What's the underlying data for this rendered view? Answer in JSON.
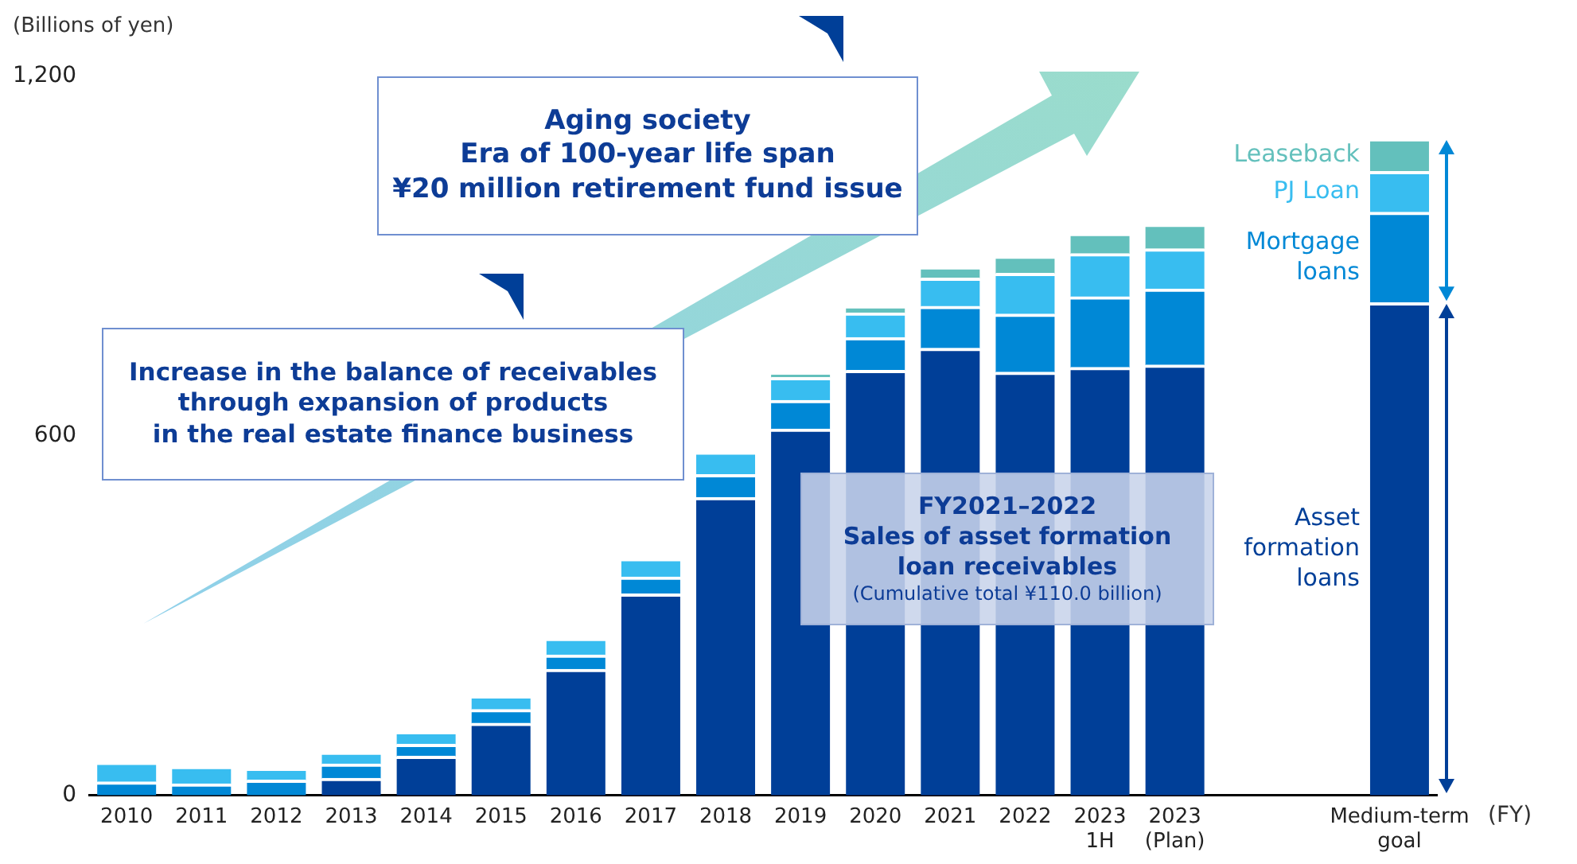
{
  "chart_data": {
    "type": "bar",
    "stacked": true,
    "ylabel": "(Billions of yen)",
    "xlabel": "(FY)",
    "categories": [
      "2010",
      "2011",
      "2012",
      "2013",
      "2014",
      "2015",
      "2016",
      "2017",
      "2018",
      "2019",
      "2020",
      "2021",
      "2022",
      "2023\n1H",
      "2023\n(Plan)",
      null,
      null,
      "Medium-term\ngoal"
    ],
    "series": [
      {
        "name": "Asset formation loans",
        "color": "#003f98",
        "values": [
          null,
          null,
          null,
          28,
          65,
          120,
          210,
          336,
          497,
          611,
          709,
          746,
          706,
          714,
          718,
          null,
          null,
          822
        ]
      },
      {
        "name": "Mortgage loans",
        "color": "#0088d6",
        "values": [
          22,
          19,
          25,
          24,
          20,
          23,
          24,
          28,
          38,
          48,
          55,
          70,
          97,
          118,
          127,
          null,
          null,
          151
        ]
      },
      {
        "name": "PJ Loan",
        "color": "#38bdf0",
        "values": [
          33,
          29,
          20,
          20,
          21,
          23,
          28,
          31,
          38,
          38,
          41,
          47,
          68,
          72,
          67,
          null,
          null,
          68
        ]
      },
      {
        "name": "Leaseback",
        "color": "#63c0bc",
        "values": [
          null,
          null,
          null,
          null,
          null,
          null,
          null,
          null,
          null,
          8,
          12,
          19,
          29,
          34,
          41,
          null,
          null,
          55
        ]
      }
    ],
    "ylim": [
      0,
      1200
    ],
    "yticks": [
      0,
      {
        "value": 600,
        "label": "600"
      },
      {
        "value": 1200,
        "label": "1,200"
      }
    ],
    "annotations": [
      "Aging society\nEra of 100-year life span\n¥20 million retirement fund issue",
      "Increase in the balance of receivables\nthrough expansion of products\nin the real estate finance business",
      "FY2021–2022\nSales of asset formation\nloan receivables\n(Cumulative total ¥110.0 billion)"
    ]
  }
}
